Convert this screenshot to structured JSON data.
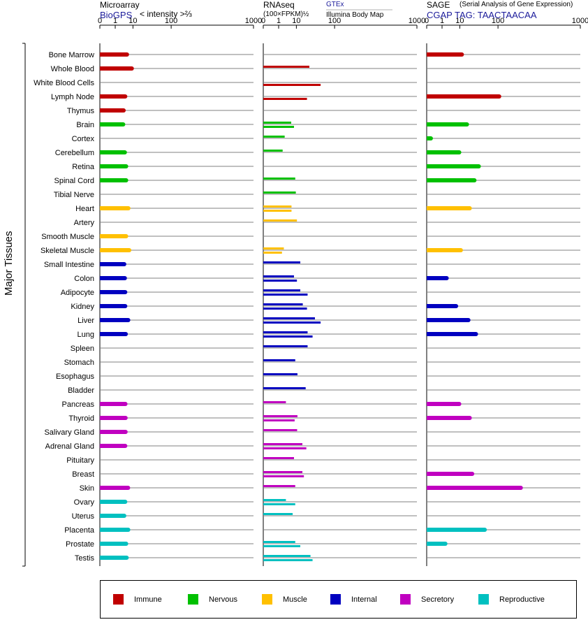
{
  "y_axis_label": "Major Tissues",
  "colors": {
    "Immune": "#c00000",
    "Nervous": "#00c000",
    "Muscle": "#ffc000",
    "Internal": "#0000c0",
    "Secretory": "#c000c0",
    "Reproductive": "#00c0c0"
  },
  "headers": {
    "microarray": {
      "title": "Microarray",
      "source": "BioGPS",
      "unit": "< intensity >⅔"
    },
    "rnaseq": {
      "title": "RNAseq",
      "unit": "(100×FPKM)½",
      "legend_upper": "GTEx",
      "legend_lower": "Illumina Body Map"
    },
    "sage": {
      "title": "SAGE",
      "subtitle": "(Serial Analysis of Gene Expression)",
      "tag": "CGAP TAG: TAACTAACAA"
    }
  },
  "legend": {
    "items": [
      {
        "label": "Immune",
        "color": "#c00000"
      },
      {
        "label": "Nervous",
        "color": "#00c000"
      },
      {
        "label": "Muscle",
        "color": "#ffc000"
      },
      {
        "label": "Internal",
        "color": "#0000c0"
      },
      {
        "label": "Secretory",
        "color": "#c000c0"
      },
      {
        "label": "Reproductive",
        "color": "#00c0c0"
      }
    ]
  },
  "chart_data": [
    {
      "type": "bar",
      "title": "Microarray",
      "xlabel": "< intensity >⅔",
      "xscale": "cube-root",
      "xlim": [
        0,
        1000
      ],
      "xticks": [
        "0",
        "1",
        "10",
        "100",
        "1000"
      ],
      "categories": [
        "Bone Marrow",
        "Whole Blood",
        "White Blood Cells",
        "Lymph Node",
        "Thymus",
        "Brain",
        "Cortex",
        "Cerebellum",
        "Retina",
        "Spinal Cord",
        "Tibial Nerve",
        "Heart",
        "Artery",
        "Smooth Muscle",
        "Skeletal Muscle",
        "Small Intestine",
        "Colon",
        "Adipocyte",
        "Kidney",
        "Liver",
        "Lung",
        "Spleen",
        "Stomach",
        "Esophagus",
        "Bladder",
        "Pancreas",
        "Thyroid",
        "Salivary Gland",
        "Adrenal Gland",
        "Pituitary",
        "Breast",
        "Skin",
        "Ovary",
        "Uterus",
        "Placenta",
        "Prostate",
        "Testis"
      ],
      "groups": [
        "Immune",
        "Immune",
        "Immune",
        "Immune",
        "Immune",
        "Nervous",
        "Nervous",
        "Nervous",
        "Nervous",
        "Nervous",
        "Nervous",
        "Muscle",
        "Muscle",
        "Muscle",
        "Muscle",
        "Internal",
        "Internal",
        "Internal",
        "Internal",
        "Internal",
        "Internal",
        "Internal",
        "Internal",
        "Internal",
        "Internal",
        "Secretory",
        "Secretory",
        "Secretory",
        "Secretory",
        "Secretory",
        "Secretory",
        "Secretory",
        "Reproductive",
        "Reproductive",
        "Reproductive",
        "Reproductive",
        "Reproductive"
      ],
      "values": [
        5.5,
        9,
        null,
        4.5,
        3.7,
        3.5,
        null,
        4.3,
        5,
        5,
        null,
        6.4,
        null,
        5,
        7,
        4,
        4.3,
        4.5,
        4.5,
        6.3,
        4.8,
        null,
        null,
        null,
        null,
        4.6,
        4.7,
        4.7,
        4.5,
        null,
        null,
        6.2,
        4.5,
        4,
        6.3,
        5,
        5.3
      ]
    },
    {
      "type": "bar",
      "title": "RNAseq",
      "xlabel": "(100×FPKM)½",
      "xscale": "cube-root",
      "xlim": [
        0,
        1000
      ],
      "xticks": [
        "0",
        "1",
        "10",
        "100",
        "1000"
      ],
      "categories": [
        "Bone Marrow",
        "Whole Blood",
        "White Blood Cells",
        "Lymph Node",
        "Thymus",
        "Brain",
        "Cortex",
        "Cerebellum",
        "Retina",
        "Spinal Cord",
        "Tibial Nerve",
        "Heart",
        "Artery",
        "Smooth Muscle",
        "Skeletal Muscle",
        "Small Intestine",
        "Colon",
        "Adipocyte",
        "Kidney",
        "Liver",
        "Lung",
        "Spleen",
        "Stomach",
        "Esophagus",
        "Bladder",
        "Pancreas",
        "Thyroid",
        "Salivary Gland",
        "Adrenal Gland",
        "Pituitary",
        "Breast",
        "Skin",
        "Ovary",
        "Uterus",
        "Placenta",
        "Prostate",
        "Testis"
      ],
      "series": [
        {
          "name": "GTEx",
          "values": [
            null,
            27,
            null,
            null,
            null,
            6,
            2.7,
            2,
            null,
            9,
            9.5,
            6.2,
            10.5,
            null,
            2.4,
            14,
            8,
            14,
            17,
            38,
            24,
            24,
            9,
            11,
            21,
            3.2,
            11,
            10.7,
            16.5,
            8,
            16.5,
            9,
            3.2,
            7,
            null,
            9,
            29
          ]
        },
        {
          "name": "Illumina Body Map",
          "values": [
            null,
            null,
            52,
            23,
            null,
            8,
            null,
            null,
            null,
            null,
            null,
            6.2,
            null,
            null,
            1.8,
            null,
            10.5,
            24,
            23,
            52,
            33,
            null,
            null,
            null,
            null,
            null,
            8.5,
            null,
            22,
            null,
            18.5,
            null,
            9,
            null,
            null,
            14,
            33
          ]
        }
      ]
    },
    {
      "type": "bar",
      "title": "SAGE",
      "subtitle": "(Serial Analysis of Gene Expression)",
      "xscale": "cube-root",
      "xlim": [
        0,
        1000
      ],
      "xticks": [
        "0",
        "1",
        "10",
        "100",
        "1000"
      ],
      "tag": "CGAP TAG: TAACTAACAA",
      "categories": [
        "Bone Marrow",
        "Whole Blood",
        "White Blood Cells",
        "Lymph Node",
        "Thymus",
        "Brain",
        "Cortex",
        "Cerebellum",
        "Retina",
        "Spinal Cord",
        "Tibial Nerve",
        "Heart",
        "Artery",
        "Smooth Muscle",
        "Skeletal Muscle",
        "Small Intestine",
        "Colon",
        "Adipocyte",
        "Kidney",
        "Liver",
        "Lung",
        "Spleen",
        "Stomach",
        "Esophagus",
        "Bladder",
        "Pancreas",
        "Thyroid",
        "Salivary Gland",
        "Adrenal Gland",
        "Pituitary",
        "Breast",
        "Skin",
        "Ovary",
        "Uterus",
        "Placenta",
        "Prostate",
        "Testis"
      ],
      "values": [
        12,
        null,
        null,
        105,
        null,
        18,
        0.02,
        9.5,
        39,
        30,
        null,
        22,
        null,
        null,
        11,
        null,
        2.2,
        null,
        7,
        20,
        33,
        null,
        null,
        null,
        null,
        9.5,
        22,
        null,
        null,
        null,
        26,
        230,
        null,
        null,
        54,
        1.8,
        null
      ]
    }
  ]
}
